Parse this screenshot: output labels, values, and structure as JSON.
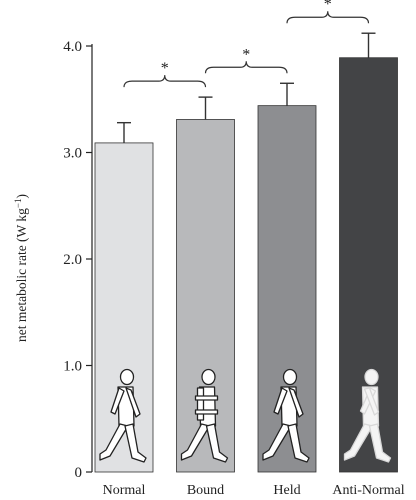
{
  "chart_data": {
    "type": "bar",
    "categories": [
      "Normal",
      "Bound",
      "Held",
      "Anti-Normal"
    ],
    "values": [
      3.09,
      3.31,
      3.44,
      3.89
    ],
    "errors": [
      0.19,
      0.21,
      0.21,
      0.23
    ],
    "colors": [
      "#e0e1e3",
      "#b8b9bb",
      "#8d8e91",
      "#434446"
    ],
    "ylabel": "net metabolic rate (W kg",
    "ylabel_sup": "−1",
    "ylabel_close": ")",
    "ylim": [
      0,
      4.0
    ],
    "yticks": [
      {
        "v": 0,
        "label": "0"
      },
      {
        "v": 1,
        "label": "1.0"
      },
      {
        "v": 2,
        "label": "2.0"
      },
      {
        "v": 3,
        "label": "3.0"
      },
      {
        "v": 4,
        "label": "4.0"
      }
    ],
    "significance": [
      {
        "from": 0,
        "to": 1,
        "label": "*"
      },
      {
        "from": 1,
        "to": 2,
        "label": "*"
      },
      {
        "from": 2,
        "to": 3,
        "label": "*"
      }
    ],
    "icons": [
      "walking-figure-icon",
      "bound-arms-figure-icon",
      "held-arms-figure-icon",
      "anti-normal-figure-icon"
    ],
    "grid": false
  }
}
